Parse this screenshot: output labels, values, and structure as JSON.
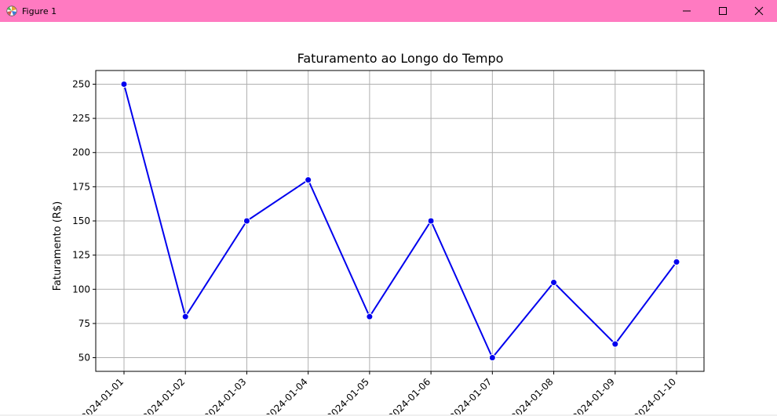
{
  "window": {
    "title": "Figure 1",
    "controls": [
      "minimize",
      "maximize",
      "close"
    ]
  },
  "colors": {
    "titlebar": "#ff7ac1",
    "line": "#0000ee",
    "grid": "#b0b0b0"
  },
  "chart_data": {
    "type": "line",
    "title": "Faturamento ao Longo do Tempo",
    "xlabel": "",
    "ylabel": "Faturamento (R$)",
    "categories": [
      "2024-01-01",
      "2024-01-02",
      "2024-01-03",
      "2024-01-04",
      "2024-01-05",
      "2024-01-06",
      "2024-01-07",
      "2024-01-08",
      "2024-01-09",
      "2024-01-10"
    ],
    "values": [
      250,
      80,
      150,
      180,
      80,
      150,
      50,
      105,
      60,
      120
    ],
    "ylim": [
      40,
      260
    ],
    "yticks": [
      50,
      75,
      100,
      125,
      150,
      175,
      200,
      225,
      250
    ],
    "grid": true,
    "markers": true
  }
}
